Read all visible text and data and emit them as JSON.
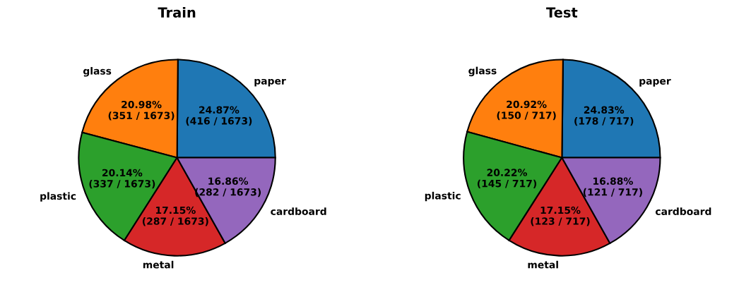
{
  "chart_data": [
    {
      "type": "pie",
      "title": "Train",
      "categories": [
        "paper",
        "glass",
        "plastic",
        "metal",
        "cardboard"
      ],
      "values": [
        416,
        351,
        337,
        287,
        282
      ],
      "colors": [
        "#1f77b4",
        "#ff7f0e",
        "#2ca02c",
        "#d62728",
        "#9467bd"
      ],
      "value_labels": [
        "24.87%\n(416 / 1673)",
        "20.98%\n(351 / 1673)",
        "20.14%\n(337 / 1673)",
        "17.15%\n(287 / 1673)",
        "16.86%\n(282 / 1673)"
      ]
    },
    {
      "type": "pie",
      "title": "Test",
      "categories": [
        "paper",
        "glass",
        "plastic",
        "metal",
        "cardboard"
      ],
      "values": [
        178,
        150,
        145,
        123,
        121
      ],
      "colors": [
        "#1f77b4",
        "#ff7f0e",
        "#2ca02c",
        "#d62728",
        "#9467bd"
      ],
      "value_labels": [
        "24.83%\n(178 / 717)",
        "20.92%\n(150 / 717)",
        "20.22%\n(145 / 717)",
        "17.15%\n(123 / 717)",
        "16.88%\n(121 / 717)"
      ]
    }
  ]
}
